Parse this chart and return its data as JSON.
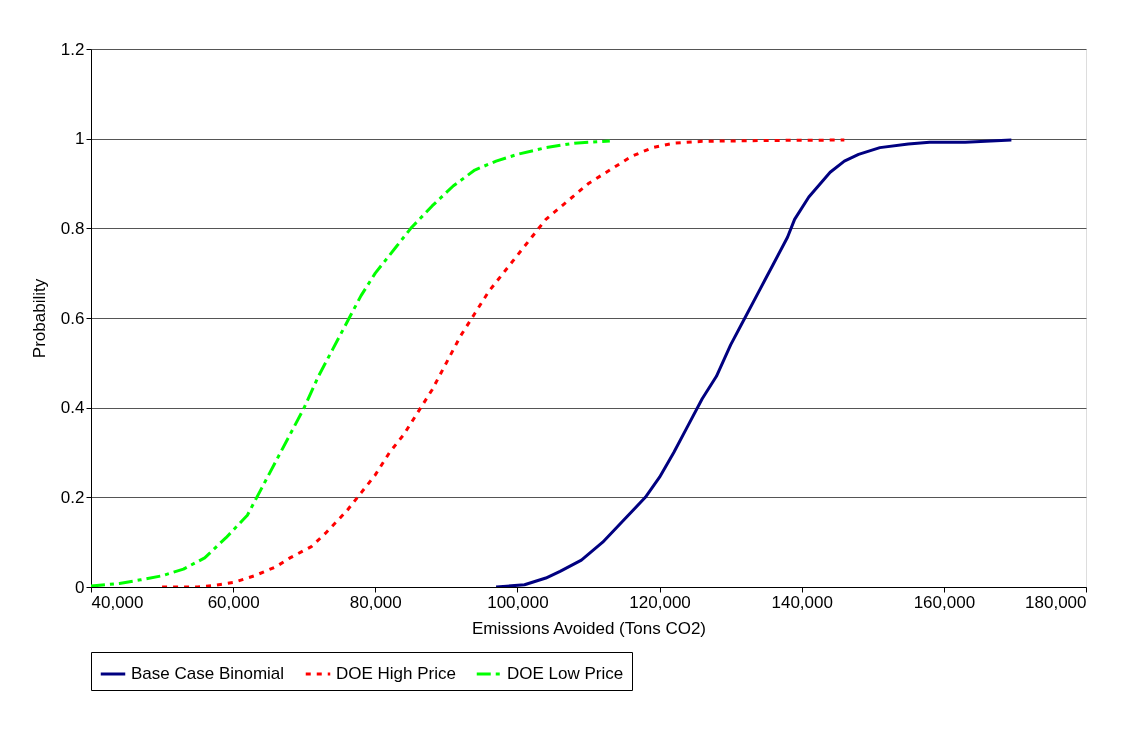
{
  "chart_data": {
    "type": "line",
    "xlabel": "Emissions Avoided (Tons CO2)",
    "ylabel": "Probability",
    "xlim": [
      40000,
      180000
    ],
    "xticks": [
      {
        "value": 40000,
        "label": "40,000"
      },
      {
        "value": 60000,
        "label": "60,000"
      },
      {
        "value": 80000,
        "label": "80,000"
      },
      {
        "value": 100000,
        "label": "100,000"
      },
      {
        "value": 120000,
        "label": "120,000"
      },
      {
        "value": 140000,
        "label": "140,000"
      },
      {
        "value": 160000,
        "label": "160,000"
      },
      {
        "value": 180000,
        "label": "180,000"
      }
    ],
    "ylim": [
      0,
      1.2
    ],
    "yticks": [
      0,
      0.2,
      0.4,
      0.6,
      0.8,
      1,
      1.2
    ],
    "grid": "y",
    "legend": "bottom",
    "marker": "none",
    "series": [
      {
        "name": "Base Case Binomial",
        "color": "#000080",
        "line_style": "solid",
        "x": [
          97000,
          101000,
          104000,
          106000,
          109000,
          112000,
          115000,
          118000,
          120000,
          122000,
          124000,
          126000,
          128000,
          130000,
          132000,
          134000,
          136000,
          138000,
          139000,
          141000,
          144000,
          146000,
          148000,
          151000,
          155000,
          158000,
          163000,
          169500
        ],
        "values": [
          0,
          0.005,
          0.02,
          0.035,
          0.06,
          0.1,
          0.15,
          0.2,
          0.245,
          0.3,
          0.36,
          0.42,
          0.47,
          0.54,
          0.6,
          0.66,
          0.72,
          0.78,
          0.82,
          0.87,
          0.925,
          0.95,
          0.965,
          0.98,
          0.988,
          0.992,
          0.992,
          0.997
        ]
      },
      {
        "name": "DOE High Price",
        "color": "#ff0000",
        "line_style": "dotted",
        "x": [
          50000,
          55000,
          57000,
          60000,
          63000,
          66000,
          68000,
          71000,
          73000,
          76000,
          78000,
          80000,
          82000,
          84000,
          86000,
          88000,
          90000,
          92000,
          94000,
          96000,
          98000,
          100000,
          102000,
          104000,
          107000,
          110000,
          113000,
          116000,
          119000,
          122000,
          126000,
          135000,
          146000
        ],
        "values": [
          0,
          0,
          0.003,
          0.01,
          0.025,
          0.045,
          0.065,
          0.09,
          0.12,
          0.17,
          0.21,
          0.25,
          0.3,
          0.34,
          0.39,
          0.44,
          0.5,
          0.56,
          0.61,
          0.66,
          0.7,
          0.74,
          0.78,
          0.82,
          0.86,
          0.9,
          0.93,
          0.96,
          0.98,
          0.99,
          0.994,
          0.996,
          0.997
        ]
      },
      {
        "name": "DOE Low Price",
        "color": "#00ff00",
        "line_style": "dashed",
        "x": [
          40000,
          44000,
          47000,
          50000,
          53000,
          56000,
          59000,
          62000,
          64000,
          66000,
          68000,
          70000,
          72000,
          74000,
          76000,
          78000,
          80000,
          83000,
          85000,
          88000,
          91000,
          94000,
          97000,
          100000,
          104000,
          108000,
          113000
        ],
        "values": [
          0.002,
          0.008,
          0.016,
          0.025,
          0.04,
          0.065,
          0.11,
          0.16,
          0.22,
          0.28,
          0.34,
          0.4,
          0.47,
          0.53,
          0.59,
          0.65,
          0.7,
          0.76,
          0.8,
          0.85,
          0.895,
          0.93,
          0.95,
          0.965,
          0.98,
          0.99,
          0.995
        ]
      }
    ]
  }
}
